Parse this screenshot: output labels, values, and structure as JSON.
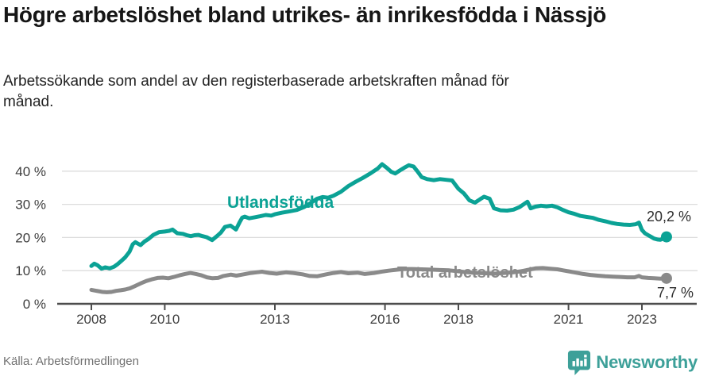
{
  "header": {
    "title": "Högre arbetslöshet bland utrikes- än inrikesfödda i Nässjö",
    "subtitle": "Arbetssökande som andel av den registerbaserade arbetskraften månad för månad."
  },
  "footer": {
    "source": "Källa: Arbetsförmedlingen",
    "brand": "Newsworthy"
  },
  "colors": {
    "teal": "#0ba295",
    "gray": "#8a8a8a",
    "brand_teal": "#3da099",
    "gridline": "#dcdcdc",
    "axis": "#4d4d4d",
    "tick_text": "#3d3d3d",
    "end_label_text": "#2e2e2e"
  },
  "chart_data": {
    "type": "line",
    "title": "Högre arbetslöshet bland utrikes- än inrikesfödda i Nässjö",
    "subtitle": "Arbetssökande som andel av den registerbaserade arbetskraften månad för månad.",
    "xlabel": "",
    "ylabel": "",
    "grid": "horizontal",
    "legend_position": "inline-labels",
    "xlim": [
      2007.1,
      2024.4
    ],
    "ylim": [
      0,
      44
    ],
    "y_axis": {
      "values": [
        0,
        10,
        20,
        30,
        40
      ],
      "labels": [
        "0 %",
        "10 %",
        "20 %",
        "30 %",
        "40 %"
      ]
    },
    "x_axis": {
      "values": [
        2008,
        2010,
        2013,
        2016,
        2018,
        2021,
        2023
      ],
      "labels": [
        "2008",
        "2010",
        "2013",
        "2016",
        "2018",
        "2021",
        "2023"
      ]
    },
    "series": [
      {
        "id": "utlandsfodda",
        "name": "Utlandsfödda",
        "color": "#0ba295",
        "end_label": "20,2 %",
        "end_value": 20.2,
        "points": [
          [
            2008.0,
            11.4
          ],
          [
            2008.08,
            12.1
          ],
          [
            2008.17,
            11.6
          ],
          [
            2008.28,
            10.6
          ],
          [
            2008.38,
            11.0
          ],
          [
            2008.5,
            10.7
          ],
          [
            2008.62,
            11.2
          ],
          [
            2008.72,
            12.0
          ],
          [
            2008.82,
            13.0
          ],
          [
            2008.92,
            14.0
          ],
          [
            2009.04,
            15.7
          ],
          [
            2009.13,
            18.0
          ],
          [
            2009.2,
            18.6
          ],
          [
            2009.34,
            17.7
          ],
          [
            2009.45,
            18.8
          ],
          [
            2009.56,
            19.6
          ],
          [
            2009.69,
            20.8
          ],
          [
            2009.84,
            21.6
          ],
          [
            2010.0,
            21.8
          ],
          [
            2010.12,
            22.0
          ],
          [
            2010.21,
            22.4
          ],
          [
            2010.34,
            21.3
          ],
          [
            2010.49,
            21.1
          ],
          [
            2010.6,
            20.7
          ],
          [
            2010.71,
            20.4
          ],
          [
            2010.81,
            20.7
          ],
          [
            2010.92,
            20.8
          ],
          [
            2011.03,
            20.4
          ],
          [
            2011.14,
            20.1
          ],
          [
            2011.29,
            19.2
          ],
          [
            2011.42,
            20.4
          ],
          [
            2011.53,
            21.5
          ],
          [
            2011.64,
            23.2
          ],
          [
            2011.79,
            23.6
          ],
          [
            2011.94,
            22.4
          ],
          [
            2012.05,
            24.8
          ],
          [
            2012.11,
            26.0
          ],
          [
            2012.18,
            26.3
          ],
          [
            2012.3,
            25.8
          ],
          [
            2012.45,
            26.1
          ],
          [
            2012.6,
            26.4
          ],
          [
            2012.75,
            26.8
          ],
          [
            2012.9,
            26.6
          ],
          [
            2013.0,
            27.0
          ],
          [
            2013.2,
            27.5
          ],
          [
            2013.4,
            27.9
          ],
          [
            2013.6,
            28.3
          ],
          [
            2013.8,
            29.2
          ],
          [
            2014.0,
            30.6
          ],
          [
            2014.15,
            31.7
          ],
          [
            2014.3,
            32.2
          ],
          [
            2014.45,
            32.0
          ],
          [
            2014.6,
            32.6
          ],
          [
            2014.8,
            33.8
          ],
          [
            2015.0,
            35.5
          ],
          [
            2015.2,
            36.8
          ],
          [
            2015.4,
            38.0
          ],
          [
            2015.6,
            39.3
          ],
          [
            2015.8,
            40.8
          ],
          [
            2015.92,
            42.1
          ],
          [
            2016.05,
            41.0
          ],
          [
            2016.17,
            39.8
          ],
          [
            2016.28,
            39.3
          ],
          [
            2016.4,
            40.2
          ],
          [
            2016.55,
            41.2
          ],
          [
            2016.65,
            41.8
          ],
          [
            2016.78,
            41.4
          ],
          [
            2016.88,
            40.0
          ],
          [
            2017.0,
            38.2
          ],
          [
            2017.15,
            37.6
          ],
          [
            2017.33,
            37.3
          ],
          [
            2017.5,
            37.6
          ],
          [
            2017.67,
            37.4
          ],
          [
            2017.83,
            37.2
          ],
          [
            2018.0,
            34.7
          ],
          [
            2018.15,
            33.3
          ],
          [
            2018.3,
            31.2
          ],
          [
            2018.45,
            30.5
          ],
          [
            2018.6,
            31.6
          ],
          [
            2018.7,
            32.3
          ],
          [
            2018.85,
            31.7
          ],
          [
            2018.97,
            28.8
          ],
          [
            2019.15,
            28.2
          ],
          [
            2019.33,
            28.1
          ],
          [
            2019.5,
            28.4
          ],
          [
            2019.67,
            29.2
          ],
          [
            2019.8,
            30.2
          ],
          [
            2019.88,
            30.8
          ],
          [
            2019.97,
            28.8
          ],
          [
            2020.1,
            29.3
          ],
          [
            2020.25,
            29.6
          ],
          [
            2020.4,
            29.4
          ],
          [
            2020.55,
            29.6
          ],
          [
            2020.7,
            29.1
          ],
          [
            2020.85,
            28.3
          ],
          [
            2021.0,
            27.6
          ],
          [
            2021.17,
            27.1
          ],
          [
            2021.33,
            26.5
          ],
          [
            2021.5,
            26.2
          ],
          [
            2021.67,
            25.9
          ],
          [
            2021.83,
            25.3
          ],
          [
            2022.0,
            24.9
          ],
          [
            2022.17,
            24.4
          ],
          [
            2022.33,
            24.1
          ],
          [
            2022.5,
            23.9
          ],
          [
            2022.67,
            23.8
          ],
          [
            2022.83,
            24.0
          ],
          [
            2022.92,
            24.5
          ],
          [
            2023.0,
            22.3
          ],
          [
            2023.08,
            21.3
          ],
          [
            2023.17,
            20.7
          ],
          [
            2023.25,
            20.2
          ],
          [
            2023.33,
            19.7
          ],
          [
            2023.42,
            19.4
          ],
          [
            2023.5,
            19.3
          ],
          [
            2023.58,
            19.7
          ],
          [
            2023.67,
            20.2
          ]
        ]
      },
      {
        "id": "total",
        "name": "Total arbetslöshet",
        "color": "#8a8a8a",
        "end_label": "7,7 %",
        "end_value": 7.7,
        "points": [
          [
            2008.0,
            4.2
          ],
          [
            2008.1,
            4.0
          ],
          [
            2008.2,
            3.8
          ],
          [
            2008.3,
            3.6
          ],
          [
            2008.42,
            3.5
          ],
          [
            2008.55,
            3.6
          ],
          [
            2008.67,
            3.9
          ],
          [
            2008.8,
            4.1
          ],
          [
            2008.92,
            4.3
          ],
          [
            2009.05,
            4.7
          ],
          [
            2009.2,
            5.4
          ],
          [
            2009.35,
            6.2
          ],
          [
            2009.5,
            6.9
          ],
          [
            2009.65,
            7.4
          ],
          [
            2009.8,
            7.8
          ],
          [
            2009.95,
            7.9
          ],
          [
            2010.1,
            7.7
          ],
          [
            2010.25,
            8.1
          ],
          [
            2010.4,
            8.6
          ],
          [
            2010.55,
            9.0
          ],
          [
            2010.7,
            9.3
          ],
          [
            2010.85,
            9.0
          ],
          [
            2011.0,
            8.6
          ],
          [
            2011.15,
            8.0
          ],
          [
            2011.3,
            7.7
          ],
          [
            2011.45,
            7.8
          ],
          [
            2011.6,
            8.4
          ],
          [
            2011.8,
            8.8
          ],
          [
            2011.95,
            8.5
          ],
          [
            2012.15,
            8.9
          ],
          [
            2012.35,
            9.3
          ],
          [
            2012.5,
            9.5
          ],
          [
            2012.65,
            9.7
          ],
          [
            2012.85,
            9.3
          ],
          [
            2013.05,
            9.1
          ],
          [
            2013.3,
            9.5
          ],
          [
            2013.5,
            9.3
          ],
          [
            2013.75,
            8.9
          ],
          [
            2013.95,
            8.4
          ],
          [
            2014.15,
            8.3
          ],
          [
            2014.4,
            8.9
          ],
          [
            2014.6,
            9.3
          ],
          [
            2014.8,
            9.6
          ],
          [
            2015.0,
            9.2
          ],
          [
            2015.25,
            9.4
          ],
          [
            2015.45,
            9.0
          ],
          [
            2015.7,
            9.3
          ],
          [
            2015.9,
            9.7
          ],
          [
            2016.1,
            10.0
          ],
          [
            2016.35,
            10.3
          ],
          [
            2016.5,
            10.5
          ],
          [
            2016.75,
            10.5
          ],
          [
            2017.0,
            10.4
          ],
          [
            2017.25,
            10.3
          ],
          [
            2017.5,
            10.2
          ],
          [
            2017.75,
            10.1
          ],
          [
            2018.0,
            9.8
          ],
          [
            2018.25,
            9.5
          ],
          [
            2018.5,
            9.3
          ],
          [
            2018.75,
            9.2
          ],
          [
            2019.0,
            9.1
          ],
          [
            2019.25,
            9.3
          ],
          [
            2019.5,
            9.5
          ],
          [
            2019.75,
            9.9
          ],
          [
            2019.92,
            10.3
          ],
          [
            2020.1,
            10.7
          ],
          [
            2020.3,
            10.8
          ],
          [
            2020.5,
            10.6
          ],
          [
            2020.7,
            10.4
          ],
          [
            2020.85,
            10.1
          ],
          [
            2021.0,
            9.8
          ],
          [
            2021.2,
            9.4
          ],
          [
            2021.4,
            9.0
          ],
          [
            2021.6,
            8.7
          ],
          [
            2021.8,
            8.5
          ],
          [
            2022.0,
            8.3
          ],
          [
            2022.2,
            8.2
          ],
          [
            2022.4,
            8.1
          ],
          [
            2022.6,
            8.0
          ],
          [
            2022.8,
            8.0
          ],
          [
            2022.92,
            8.4
          ],
          [
            2023.0,
            8.0
          ],
          [
            2023.17,
            7.8
          ],
          [
            2023.33,
            7.7
          ],
          [
            2023.5,
            7.6
          ],
          [
            2023.67,
            7.7
          ]
        ]
      }
    ]
  }
}
